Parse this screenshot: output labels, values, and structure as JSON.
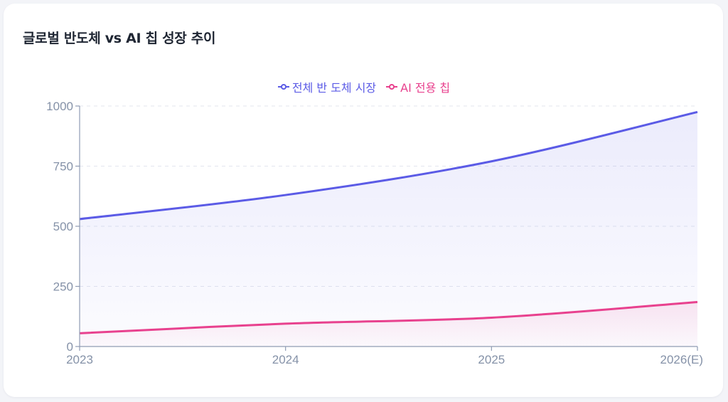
{
  "card": {
    "title": "글로벌 반도체 vs AI 칩 성장 추이"
  },
  "legend": {
    "items": [
      {
        "label": "전체 반 도체 시장",
        "color": "#5b5be6",
        "icon": "line-circle-icon"
      },
      {
        "label": "AI 전용 칩",
        "color": "#e8418e",
        "icon": "line-circle-icon"
      }
    ]
  },
  "chart_data": {
    "type": "area",
    "title": "글로벌 반도체 vs AI 칩 성장 추이",
    "xlabel": "",
    "ylabel": "",
    "categories": [
      "2023",
      "2024",
      "2025",
      "2026(E)"
    ],
    "series": [
      {
        "name": "전체 반 도체 시장",
        "color": "#5b5be6",
        "values": [
          530,
          630,
          770,
          975
        ]
      },
      {
        "name": "AI 전용 칩",
        "color": "#e8418e",
        "values": [
          55,
          95,
          120,
          185
        ]
      }
    ],
    "ylim": [
      0,
      1000
    ],
    "yticks": [
      0,
      250,
      500,
      750,
      1000
    ],
    "grid": true,
    "legend_position": "top"
  }
}
